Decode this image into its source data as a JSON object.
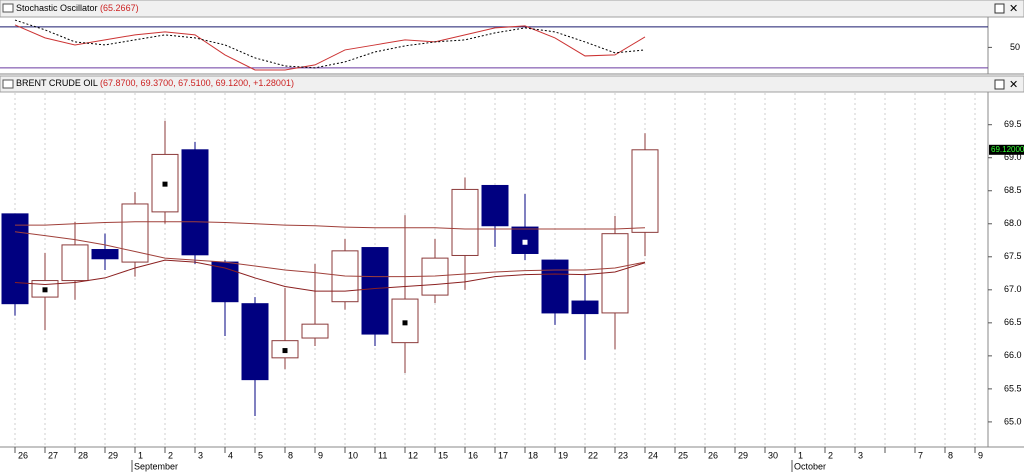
{
  "chart_data": [
    {
      "type": "line",
      "title": "Stochastic Oscillator",
      "subtitle": "(65.2667)",
      "ylim": [
        14,
        93
      ],
      "yticks": [
        50
      ],
      "levels": [
        80,
        20
      ],
      "level_colors": [
        "#1a1a6e",
        "#6a3aa0"
      ],
      "series": [
        {
          "color": "#cc3333",
          "dash": false,
          "values": [
            82.9,
            63.9,
            53.6,
            61,
            68.3,
            72.7,
            68.3,
            39,
            17,
            17,
            24.4,
            46.3,
            53.6,
            61,
            58,
            68.3,
            78.5,
            81.5,
            63.9,
            37.5,
            39,
            65.27
          ]
        },
        {
          "color": "#000000",
          "dash": true,
          "values": [
            90,
            75.6,
            58,
            53.6,
            61,
            68.3,
            63.9,
            53.6,
            34.6,
            22.9,
            20,
            28.8,
            43.4,
            52.2,
            58,
            61,
            71.2,
            78.5,
            72.7,
            58,
            42,
            46.3
          ]
        }
      ]
    },
    {
      "type": "candlestick",
      "title": "BRENT CRUDE OIL",
      "subtitle": "(67.8700, 69.3700, 67.5100, 69.1200, +1.28001)",
      "categories": [
        "26",
        "27",
        "28",
        "29",
        "1",
        "2",
        "3",
        "4",
        "5",
        "8",
        "9",
        "10",
        "11",
        "12",
        "15",
        "16",
        "17",
        "18",
        "19",
        "22",
        "23",
        "24",
        "25",
        "26",
        "29",
        "30",
        "1",
        "2",
        "3",
        null,
        "7",
        "8",
        "9"
      ],
      "month_labels": [
        null,
        null,
        null,
        null,
        "September",
        null,
        null,
        null,
        null,
        null,
        null,
        null,
        null,
        null,
        null,
        null,
        null,
        null,
        null,
        null,
        null,
        null,
        null,
        null,
        null,
        null,
        "October",
        null,
        null,
        null,
        null,
        null,
        null
      ],
      "open": [
        68.15,
        66.89,
        67.14,
        67.61,
        67.42,
        68.18,
        69.12,
        67.42,
        66.79,
        65.97,
        66.27,
        66.82,
        67.64,
        66.2,
        66.92,
        67.52,
        68.58,
        67.95,
        67.45,
        66.83,
        66.65,
        67.87,
        null,
        null,
        null,
        null,
        null,
        null,
        null,
        null,
        null,
        null,
        null
      ],
      "high": [
        68.15,
        67.56,
        68.03,
        67.85,
        68.48,
        69.56,
        69.24,
        67.45,
        66.89,
        67.03,
        67.39,
        67.77,
        67.64,
        68.13,
        67.77,
        68.7,
        68.58,
        68.45,
        67.45,
        67.24,
        68.12,
        69.37,
        null,
        null,
        null,
        null,
        null,
        null,
        null,
        null,
        null,
        null,
        null
      ],
      "low": [
        66.61,
        66.39,
        66.85,
        67.3,
        67.2,
        68.0,
        67.39,
        66.3,
        65.09,
        65.8,
        66.15,
        66.7,
        66.15,
        65.74,
        66.8,
        67.0,
        67.65,
        67.45,
        66.47,
        65.94,
        66.1,
        67.51,
        null,
        null,
        null,
        null,
        null,
        null,
        null,
        null,
        null,
        null,
        null
      ],
      "close": [
        66.79,
        67.14,
        67.68,
        67.47,
        68.3,
        69.05,
        67.53,
        66.82,
        65.64,
        66.23,
        66.48,
        67.59,
        66.33,
        66.86,
        67.48,
        68.52,
        67.97,
        67.55,
        66.65,
        66.64,
        67.85,
        69.12,
        null,
        null,
        null,
        null,
        null,
        null,
        null,
        null,
        null,
        null,
        null
      ],
      "markers": [
        null,
        67.0,
        null,
        null,
        null,
        68.6,
        null,
        null,
        null,
        66.08,
        null,
        null,
        null,
        66.5,
        null,
        null,
        null,
        67.72,
        null,
        null,
        null,
        null,
        null,
        null,
        null,
        null,
        null,
        null,
        null,
        null,
        null,
        null,
        null
      ],
      "up_color": "#ffffff",
      "up_stroke": "#8b3a3a",
      "down_color": "#000080",
      "lines": [
        {
          "color": "#a0403a",
          "values": [
            67.98,
            67.98,
            68.0,
            68.02,
            68.03,
            68.03,
            68.03,
            68.02,
            68.0,
            67.98,
            67.97,
            67.95,
            67.94,
            67.94,
            67.94,
            67.92,
            67.92,
            67.92,
            67.92,
            67.92,
            67.92,
            67.94,
            null,
            null,
            null,
            null,
            null,
            null,
            null,
            null,
            null,
            null,
            null
          ]
        },
        {
          "color": "#a0403a",
          "values": [
            67.88,
            67.82,
            67.76,
            67.68,
            67.58,
            67.48,
            67.45,
            67.42,
            67.36,
            67.3,
            67.26,
            67.21,
            67.2,
            67.2,
            67.21,
            67.24,
            67.27,
            67.29,
            67.3,
            67.3,
            67.33,
            67.42,
            null,
            null,
            null,
            null,
            null,
            null,
            null,
            null,
            null,
            null,
            null
          ]
        },
        {
          "color": "#8b2020",
          "values": [
            67.11,
            67.08,
            67.11,
            67.18,
            67.33,
            67.45,
            67.42,
            67.33,
            67.18,
            67.05,
            66.98,
            66.98,
            67.02,
            67.05,
            67.08,
            67.12,
            67.2,
            67.23,
            67.24,
            67.23,
            67.27,
            67.41,
            null,
            null,
            null,
            null,
            null,
            null,
            null,
            null,
            null,
            null,
            null
          ]
        }
      ],
      "last_label": "69.12000",
      "last_value": 69.12,
      "ylim": [
        64.62,
        69.98
      ],
      "yticks": [
        {
          "value": 65,
          "label": "65.0"
        },
        65.5,
        {
          "value": 66,
          "label": "66.0"
        },
        66.5,
        {
          "value": 67,
          "label": "67.0"
        },
        67.5,
        {
          "value": 68,
          "label": "68.0"
        },
        68.5,
        {
          "value": 69,
          "label": "69.0"
        },
        69.5
      ],
      "grid": true
    }
  ]
}
